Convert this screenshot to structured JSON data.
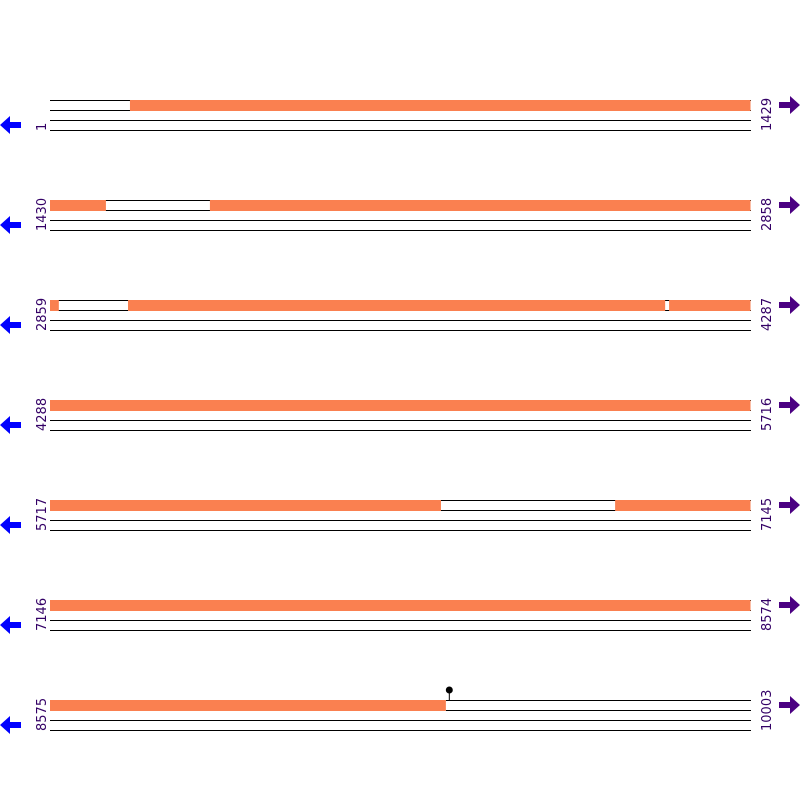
{
  "rows": [
    {
      "start": "1",
      "end": "1429",
      "from": 1,
      "to": 1429,
      "features": [
        [
          164,
          1429
        ]
      ]
    },
    {
      "start": "1430",
      "end": "2858",
      "from": 1430,
      "to": 2858,
      "features": [
        [
          1430,
          1544
        ],
        [
          1756,
          2858
        ]
      ]
    },
    {
      "start": "2859",
      "end": "4287",
      "from": 2859,
      "to": 4287,
      "features": [
        [
          2859,
          2877
        ],
        [
          3018,
          4113
        ],
        [
          4121,
          4287
        ]
      ]
    },
    {
      "start": "4288",
      "end": "5716",
      "from": 4288,
      "to": 5716,
      "features": [
        [
          4288,
          5716
        ]
      ]
    },
    {
      "start": "5717",
      "end": "7145",
      "from": 5717,
      "to": 7145,
      "features": [
        [
          5717,
          6514
        ],
        [
          6869,
          7145
        ]
      ]
    },
    {
      "start": "7146",
      "end": "8574",
      "from": 7146,
      "to": 8574,
      "features": [
        [
          7146,
          8574
        ]
      ]
    },
    {
      "start": "8575",
      "end": "10003",
      "from": 8575,
      "to": 10003,
      "features": [
        [
          8575,
          9382
        ]
      ],
      "site": 9389
    }
  ]
}
